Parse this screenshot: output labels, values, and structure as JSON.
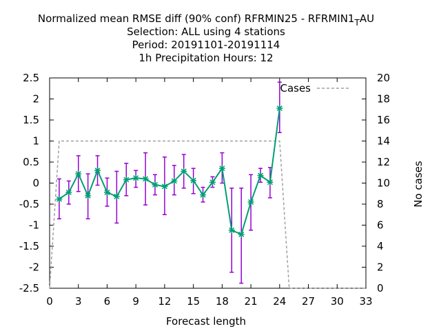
{
  "chart_data": {
    "type": "line",
    "title_lines": [
      "Normalized mean RMSE diff (90% conf) RFRMIN25 - RFRMIN1",
      "Selection: ALL using     4 stations",
      "Period: 20191101-20191114",
      "1h Precipitation   Hours:  12"
    ],
    "title_tail_sub": "T",
    "title_tail": "AU",
    "xlabel": "Forecast length",
    "ylabel_right": "No cases",
    "xlim": [
      0,
      33
    ],
    "ylim": [
      -2.5,
      2.5
    ],
    "y2lim": [
      0,
      20
    ],
    "xticks": [
      0,
      3,
      6,
      9,
      12,
      15,
      18,
      21,
      24,
      27,
      30,
      33
    ],
    "yticks": [
      -2.5,
      -2,
      -1.5,
      -1,
      -0.5,
      0,
      0.5,
      1,
      1.5,
      2,
      2.5
    ],
    "y2ticks": [
      0,
      2,
      4,
      6,
      8,
      10,
      12,
      14,
      16,
      18,
      20
    ],
    "legend": {
      "label": "Cases",
      "position": "top-right"
    },
    "grid": false,
    "series": [
      {
        "color": "#009e73",
        "errorbar_color": "#9400d3",
        "x": [
          1,
          2,
          3,
          4,
          5,
          6,
          7,
          8,
          9,
          10,
          11,
          12,
          13,
          14,
          15,
          16,
          17,
          18,
          19,
          20,
          21,
          22,
          23,
          24
        ],
        "values": [
          -0.38,
          -0.22,
          0.22,
          -0.3,
          0.3,
          -0.22,
          -0.32,
          0.08,
          0.12,
          0.1,
          -0.04,
          -0.08,
          0.05,
          0.28,
          0.06,
          -0.28,
          0.02,
          0.35,
          -1.12,
          -1.22,
          -0.45,
          0.18,
          0.02,
          1.78
        ],
        "lower": [
          -0.85,
          -0.5,
          -0.2,
          -0.85,
          -0.05,
          -0.55,
          -0.95,
          -0.3,
          -0.1,
          -0.52,
          -0.28,
          -0.75,
          -0.28,
          -0.12,
          -0.25,
          -0.45,
          -0.1,
          0.0,
          -2.12,
          -2.38,
          -1.12,
          0.02,
          -0.35,
          1.2
        ],
        "upper": [
          0.1,
          0.05,
          0.65,
          0.22,
          0.65,
          0.12,
          0.28,
          0.47,
          0.3,
          0.72,
          0.2,
          0.62,
          0.42,
          0.68,
          0.35,
          -0.1,
          0.15,
          0.72,
          -0.12,
          -0.12,
          0.2,
          0.35,
          0.37,
          2.4
        ]
      },
      {
        "name": "Cases",
        "axis": "right",
        "color": "#a0a0a0",
        "dash": true,
        "x": [
          0,
          1,
          24,
          25,
          33
        ],
        "values": [
          0,
          14,
          14,
          0,
          0
        ]
      }
    ]
  }
}
